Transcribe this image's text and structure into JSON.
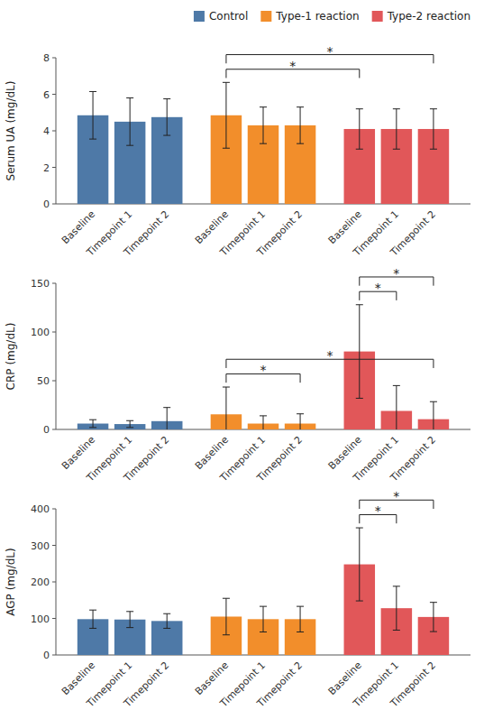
{
  "chart_data": [
    {
      "type": "bar",
      "y_label": "Serum UA (mg/dL)",
      "categories": [
        "Baseline",
        "Timepoint 1",
        "Timepoint 2"
      ],
      "series": [
        {
          "name": "Control",
          "color": "#4e79a7",
          "values": [
            4.85,
            4.5,
            4.75
          ],
          "errors": [
            1.3,
            1.3,
            1.0
          ]
        },
        {
          "name": "Type-1 reaction",
          "color": "#f28e2b",
          "values": [
            4.85,
            4.3,
            4.3
          ],
          "errors": [
            1.8,
            1.0,
            1.0
          ]
        },
        {
          "name": "Type-2 reaction",
          "color": "#e15759",
          "values": [
            4.1,
            4.1,
            4.1
          ],
          "errors": [
            1.1,
            1.1,
            1.1
          ]
        }
      ],
      "ylim": [
        0,
        8
      ],
      "yticks": [
        0,
        2,
        4,
        6,
        8
      ],
      "grid": false,
      "legend": "upper right",
      "annotations": [
        {
          "text": "*",
          "series": [
            1,
            2
          ],
          "categories": [
            0,
            0
          ]
        },
        {
          "text": "*",
          "series": [
            1,
            2
          ],
          "categories": [
            0,
            2
          ]
        }
      ]
    },
    {
      "type": "bar",
      "y_label": "CRP (mg/dL)",
      "categories": [
        "Baseline",
        "Timepoint 1",
        "Timepoint 2"
      ],
      "series": [
        {
          "color": "#4e79a7",
          "values": [
            6.0,
            5.5,
            8.5
          ],
          "errors": [
            4.0,
            3.5,
            14.0
          ]
        },
        {
          "color": "#f28e2b",
          "values": [
            15.5,
            6.0,
            6.0
          ],
          "errors": [
            28.0,
            8.0,
            10.0
          ]
        },
        {
          "color": "#e15759",
          "values": [
            80.0,
            19.0,
            10.5
          ],
          "errors": [
            48.0,
            26.0,
            18.0
          ]
        }
      ],
      "ylim": [
        0,
        150
      ],
      "yticks": [
        0,
        50,
        100,
        150
      ],
      "grid": false,
      "annotations": [
        {
          "text": "*",
          "series": [
            1,
            1
          ],
          "categories": [
            0,
            2
          ]
        },
        {
          "text": "*",
          "series": [
            1,
            2
          ],
          "categories": [
            0,
            2
          ]
        },
        {
          "text": "*",
          "series": [
            2,
            2
          ],
          "categories": [
            0,
            1
          ]
        },
        {
          "text": "*",
          "series": [
            2,
            2
          ],
          "categories": [
            0,
            2
          ]
        }
      ]
    },
    {
      "type": "bar",
      "y_label": "AGP (mg/dL)",
      "categories": [
        "Baseline",
        "Timepoint 1",
        "Timepoint 2"
      ],
      "series": [
        {
          "color": "#4e79a7",
          "values": [
            98.0,
            97.0,
            93.0
          ],
          "errors": [
            25.0,
            22.0,
            20.0
          ]
        },
        {
          "color": "#f28e2b",
          "values": [
            105.0,
            98.0,
            98.0
          ],
          "errors": [
            50.0,
            35.0,
            35.0
          ]
        },
        {
          "color": "#e15759",
          "values": [
            248.0,
            128.0,
            104.0
          ],
          "errors": [
            100.0,
            60.0,
            40.0
          ]
        }
      ],
      "ylim": [
        0,
        400
      ],
      "yticks": [
        0,
        100,
        200,
        300,
        400
      ],
      "grid": false,
      "annotations": [
        {
          "text": "*",
          "series": [
            2,
            2
          ],
          "categories": [
            0,
            1
          ]
        },
        {
          "text": "*",
          "series": [
            2,
            2
          ],
          "categories": [
            0,
            2
          ]
        }
      ]
    }
  ]
}
